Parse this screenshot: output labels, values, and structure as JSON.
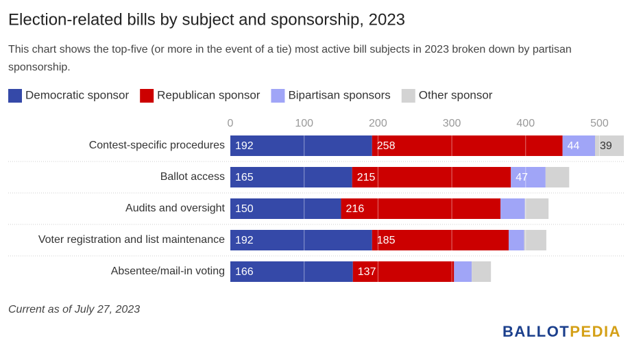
{
  "chart_data": {
    "type": "stacked-bar-horizontal",
    "title": "Election-related bills by subject and sponsorship, 2023",
    "subtitle": "This chart shows the top-five (or more in the event of a tie) most active bill subjects in 2023 broken down by partisan sponsorship.",
    "categories": [
      "Contest-specific procedures",
      "Ballot access",
      "Audits and oversight",
      "Voter registration and list maintenance",
      "Absentee/mail-in voting"
    ],
    "series": [
      {
        "name": "Democratic sponsor",
        "color": "#3549a8",
        "values": [
          192,
          165,
          150,
          192,
          166
        ]
      },
      {
        "name": "Republican sponsor",
        "color": "#cc0000",
        "values": [
          258,
          215,
          216,
          185,
          137
        ]
      },
      {
        "name": "Bipartisan sponsors",
        "color": "#a0a5f7",
        "values": [
          44,
          47,
          33,
          21,
          24
        ]
      },
      {
        "name": "Other sponsor",
        "color": "#d3d3d3",
        "values": [
          39,
          32,
          32,
          30,
          26
        ]
      }
    ],
    "xlim": [
      0,
      533
    ],
    "xticks": [
      0,
      100,
      200,
      300,
      400,
      500
    ],
    "grid": true,
    "legend": "top",
    "note": "Current as of July 27, 2023",
    "logo": {
      "first": "BALLOT",
      "second": "PEDIA"
    }
  }
}
